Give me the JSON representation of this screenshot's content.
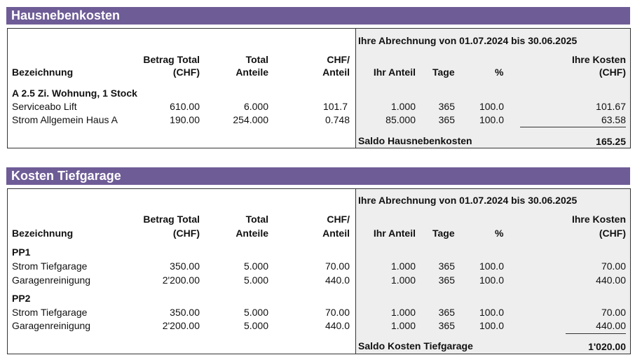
{
  "hausnebenkosten": {
    "title": "Hausnebenkosten",
    "period": "Ihre Abrechnung von 01.07.2024 bis 30.06.2025",
    "headers": {
      "bezeichnung": "Bezeichnung",
      "betrag_total_1": "Betrag Total",
      "betrag_total_2": "(CHF)",
      "total_anteile_1": "Total",
      "total_anteile_2": "Anteile",
      "chf_anteil_1": "CHF/",
      "chf_anteil_2": "Anteil",
      "ihr_anteil": "Ihr Anteil",
      "tage": "Tage",
      "prozent": "%",
      "ihre_kosten_1": "Ihre Kosten",
      "ihre_kosten_2": "(CHF)"
    },
    "group": "A 2.5 Zi. Wohnung, 1 Stock",
    "rows": [
      {
        "name": "Serviceabo Lift",
        "betrag": "610.00",
        "total": "6.000",
        "chf": "101.7",
        "anteil": "1.000",
        "tage": "365",
        "pct": "100.0",
        "kosten": "101.67"
      },
      {
        "name": "Strom Allgemein Haus A",
        "betrag": "190.00",
        "total": "254.000",
        "chf": "0.748",
        "anteil": "85.000",
        "tage": "365",
        "pct": "100.0",
        "kosten": "63.58"
      }
    ],
    "saldo_label": "Saldo Hausnebenkosten",
    "saldo_value": "165.25"
  },
  "tiefgarage": {
    "title": "Kosten Tiefgarage",
    "period": "Ihre Abrechnung von 01.07.2024 bis 30.06.2025",
    "headers": {
      "bezeichnung": "Bezeichnung",
      "betrag_total_1": "Betrag Total",
      "betrag_total_2": "(CHF)",
      "total_anteile_1": "Total",
      "total_anteile_2": "Anteile",
      "chf_anteil_1": "CHF/",
      "chf_anteil_2": "Anteil",
      "ihr_anteil": "Ihr Anteil",
      "tage": "Tage",
      "prozent": "%",
      "ihre_kosten_1": "Ihre Kosten",
      "ihre_kosten_2": "(CHF)"
    },
    "group1": "PP1",
    "rows1": [
      {
        "name": "Strom Tiefgarage",
        "betrag": "350.00",
        "total": "5.000",
        "chf": "70.00",
        "anteil": "1.000",
        "tage": "365",
        "pct": "100.0",
        "kosten": "70.00"
      },
      {
        "name": "Garagenreinigung",
        "betrag": "2'200.00",
        "total": "5.000",
        "chf": "440.0",
        "anteil": "1.000",
        "tage": "365",
        "pct": "100.0",
        "kosten": "440.00"
      }
    ],
    "group2": "PP2",
    "rows2": [
      {
        "name": "Strom Tiefgarage",
        "betrag": "350.00",
        "total": "5.000",
        "chf": "70.00",
        "anteil": "1.000",
        "tage": "365",
        "pct": "100.0",
        "kosten": "70.00"
      },
      {
        "name": "Garagenreinigung",
        "betrag": "2'200.00",
        "total": "5.000",
        "chf": "440.0",
        "anteil": "1.000",
        "tage": "365",
        "pct": "100.0",
        "kosten": "440.00"
      }
    ],
    "saldo_label": "Saldo Kosten Tiefgarage",
    "saldo_value": "1'020.00"
  }
}
